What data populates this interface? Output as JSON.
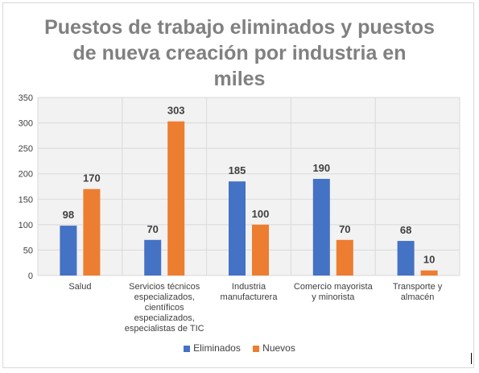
{
  "chart_data": {
    "type": "bar",
    "title_lines": [
      "Puestos de trabajo eliminados y puestos",
      "de nueva creación por industria en",
      "miles"
    ],
    "categories": [
      [
        "Salud"
      ],
      [
        "Servicios técnicos",
        "especializados,",
        "científicos",
        "especializados,",
        "especialistas de TIC"
      ],
      [
        "Industria",
        "manufacturera"
      ],
      [
        "Comercio mayorista",
        "y minorista"
      ],
      [
        "Transporte y",
        "almacén"
      ]
    ],
    "series": [
      {
        "name": "Eliminados",
        "color": "#4472c4",
        "values": [
          98,
          70,
          185,
          190,
          68
        ]
      },
      {
        "name": "Nuevos",
        "color": "#ed7d31",
        "values": [
          170,
          303,
          100,
          70,
          10
        ]
      }
    ],
    "ylim": [
      0,
      350
    ],
    "yticks": [
      0,
      50,
      100,
      150,
      200,
      250,
      300,
      350
    ],
    "grid": true,
    "legend_position": "bottom"
  }
}
